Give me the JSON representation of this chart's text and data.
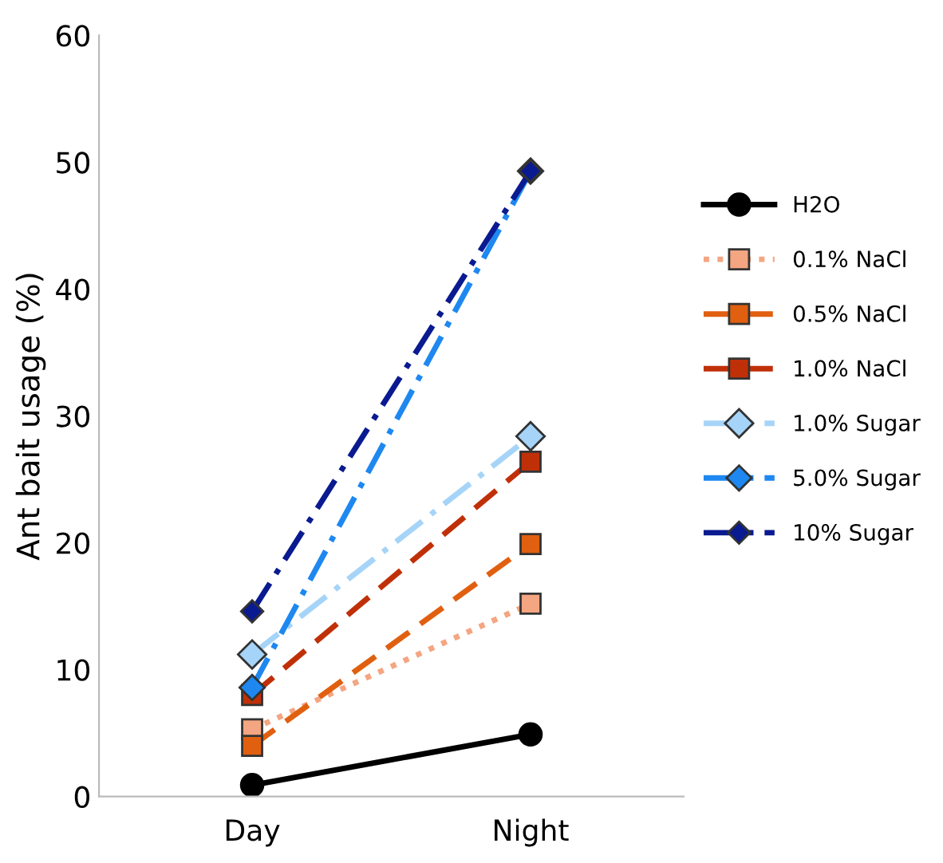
{
  "chart_data": {
    "type": "line",
    "ylabel": "Ant bait usage (%)",
    "categories": [
      "Day",
      "Night"
    ],
    "ylim": [
      0,
      60
    ],
    "yticks": [
      0,
      10,
      20,
      30,
      40,
      50,
      60
    ],
    "grid": false,
    "legend": "right",
    "series": [
      {
        "name": "H2O",
        "color": "#000000",
        "values": [
          0.9,
          4.9
        ],
        "marker": "circle",
        "line_style": "solid"
      },
      {
        "name": "0.1% NaCl",
        "color": "#f4a582",
        "values": [
          5.3,
          15.2
        ],
        "marker": "square",
        "line_style": "dotted"
      },
      {
        "name": "0.5% NaCl",
        "color": "#e06010",
        "values": [
          4.0,
          19.9
        ],
        "marker": "square",
        "line_style": "dashed"
      },
      {
        "name": "1.0% NaCl",
        "color": "#c03008",
        "values": [
          8.0,
          26.4
        ],
        "marker": "square",
        "line_style": "dashed"
      },
      {
        "name": "1.0% Sugar",
        "color": "#a6d4f8",
        "values": [
          11.2,
          28.4
        ],
        "marker": "diamond",
        "line_style": "dashdot"
      },
      {
        "name": "5.0% Sugar",
        "color": "#1e88f0",
        "values": [
          8.6,
          49.3
        ],
        "marker": "diamond",
        "line_style": "dashdot"
      },
      {
        "name": "10% Sugar",
        "color": "#0a1a90",
        "values": [
          14.6,
          49.3
        ],
        "marker": "diamond",
        "line_style": "dashdot"
      }
    ]
  }
}
